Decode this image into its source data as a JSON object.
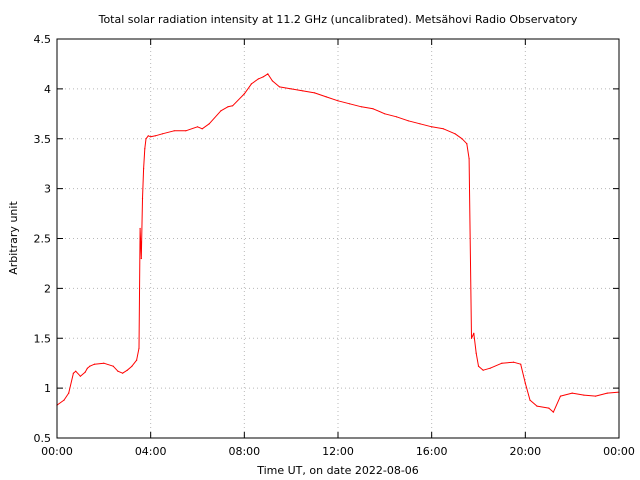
{
  "chart_data": {
    "type": "line",
    "title": "Total solar radiation intensity at 11.2 GHz (uncalibrated). Metsähovi Radio Observatory",
    "xlabel": "Time UT, on date 2022-08-06",
    "ylabel": "Arbitrary unit",
    "xlim": [
      0,
      24
    ],
    "ylim": [
      0.5,
      4.5
    ],
    "x_ticks": [
      {
        "value": 0,
        "label": "00:00"
      },
      {
        "value": 4,
        "label": "04:00"
      },
      {
        "value": 8,
        "label": "08:00"
      },
      {
        "value": 12,
        "label": "12:00"
      },
      {
        "value": 16,
        "label": "16:00"
      },
      {
        "value": 20,
        "label": "20:00"
      },
      {
        "value": 24,
        "label": "00:00"
      }
    ],
    "y_ticks": [
      {
        "value": 0.5,
        "label": "0.5"
      },
      {
        "value": 1,
        "label": "1"
      },
      {
        "value": 1.5,
        "label": "1.5"
      },
      {
        "value": 2,
        "label": "2"
      },
      {
        "value": 2.5,
        "label": "2.5"
      },
      {
        "value": 3,
        "label": "3"
      },
      {
        "value": 3.5,
        "label": "3.5"
      },
      {
        "value": 4,
        "label": "4"
      },
      {
        "value": 4.5,
        "label": "4.5"
      }
    ],
    "grid": true,
    "series": [
      {
        "color": "#ff0000",
        "x": [
          0,
          0.3,
          0.5,
          0.7,
          0.8,
          1.0,
          1.2,
          1.3,
          1.4,
          1.6,
          2.0,
          2.4,
          2.6,
          2.8,
          3.0,
          3.2,
          3.4,
          3.5,
          3.55,
          3.6,
          3.65,
          3.7,
          3.75,
          3.8,
          3.9,
          4.0,
          4.2,
          4.5,
          5.0,
          5.5,
          6.0,
          6.2,
          6.5,
          7.0,
          7.3,
          7.5,
          8.0,
          8.3,
          8.6,
          8.8,
          9.0,
          9.2,
          9.5,
          10.0,
          10.5,
          11.0,
          11.5,
          12.0,
          12.5,
          13.0,
          13.5,
          14.0,
          14.5,
          15.0,
          15.5,
          16.0,
          16.5,
          17.0,
          17.3,
          17.5,
          17.6,
          17.7,
          17.8,
          17.9,
          18.0,
          18.2,
          18.5,
          19.0,
          19.5,
          19.8,
          20.0,
          20.2,
          20.5,
          21.0,
          21.2,
          21.5,
          22.0,
          22.5,
          23.0,
          23.5,
          24.0
        ],
        "y": [
          0.83,
          0.88,
          0.95,
          1.15,
          1.17,
          1.12,
          1.16,
          1.2,
          1.22,
          1.24,
          1.25,
          1.22,
          1.17,
          1.15,
          1.18,
          1.22,
          1.28,
          1.4,
          2.6,
          2.3,
          2.9,
          3.2,
          3.4,
          3.5,
          3.53,
          3.52,
          3.53,
          3.55,
          3.58,
          3.58,
          3.62,
          3.6,
          3.65,
          3.78,
          3.82,
          3.83,
          3.95,
          4.05,
          4.1,
          4.12,
          4.15,
          4.08,
          4.02,
          4.0,
          3.98,
          3.96,
          3.92,
          3.88,
          3.85,
          3.82,
          3.8,
          3.75,
          3.72,
          3.68,
          3.65,
          3.62,
          3.6,
          3.55,
          3.5,
          3.45,
          3.3,
          1.5,
          1.55,
          1.35,
          1.22,
          1.18,
          1.2,
          1.25,
          1.26,
          1.24,
          1.05,
          0.88,
          0.82,
          0.8,
          0.76,
          0.92,
          0.95,
          0.93,
          0.92,
          0.95,
          0.96
        ]
      }
    ]
  }
}
